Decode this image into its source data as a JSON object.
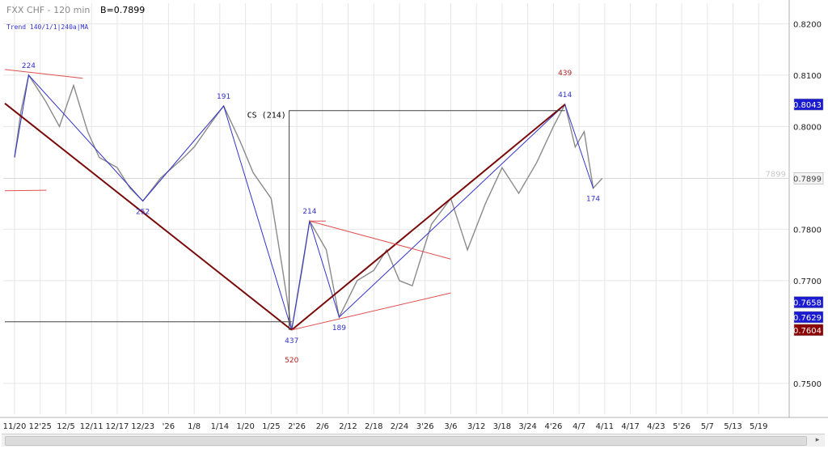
{
  "header": {
    "symbol": "FXX CHF - 120 min",
    "last": "B=0.7899",
    "indicator": "Trend 140/1/1|240a|MA"
  },
  "colors": {
    "background": "#ffffff",
    "grid": "#e6e6e6",
    "price": "#8a8a8a",
    "wave": "#3232c8",
    "channel": "#e05050",
    "trend": "#7a0a0a",
    "box": "#404040",
    "label_blue": "#3232c8",
    "label_red": "#b02020"
  },
  "chart_data": {
    "type": "line",
    "title": "FXX CHF - 120 min",
    "xlabel": "",
    "ylabel": "",
    "ylim": [
      0.744,
      0.824
    ],
    "grid": true,
    "y_ticks": [
      "0.8200",
      "0.8100",
      "0.8000",
      "0.7800",
      "0.7700",
      "0.7500"
    ],
    "x_ticks": [
      "11/20",
      "12'25",
      "12/5",
      "12/11",
      "12/17",
      "12/23",
      "'26",
      "1/8",
      "1/14",
      "1/20",
      "1/25",
      "2'26",
      "2/6",
      "2/12",
      "2/18",
      "2/24",
      "3'26",
      "3/6",
      "3/12",
      "3/18",
      "3/24",
      "4'26",
      "4/7",
      "4/11",
      "4/17",
      "4/23",
      "5'26",
      "5/7",
      "5/13",
      "5/19"
    ],
    "price_series": {
      "name": "FXX CHF",
      "points": [
        [
          "11/20",
          0.794
        ],
        [
          "11/22",
          0.803
        ],
        [
          "11/24",
          0.81
        ],
        [
          "12/1",
          0.805
        ],
        [
          "12/4",
          0.8
        ],
        [
          "12/7",
          0.808
        ],
        [
          "12/10",
          0.799
        ],
        [
          "12/13",
          0.794
        ],
        [
          "12/17",
          0.792
        ],
        [
          "12/20",
          0.788
        ],
        [
          "12/23",
          0.7855
        ],
        [
          "12/28",
          0.79
        ],
        [
          "1/4",
          0.794
        ],
        [
          "1/8",
          0.796
        ],
        [
          "1/12",
          0.801
        ],
        [
          "1/15",
          0.804
        ],
        [
          "1/19",
          0.797
        ],
        [
          "1/22",
          0.791
        ],
        [
          "1/25",
          0.786
        ],
        [
          "1/27",
          0.772
        ],
        [
          "1/29",
          0.7604
        ],
        [
          "2/1",
          0.772
        ],
        [
          "2/4",
          0.7816
        ],
        [
          "2/7",
          0.776
        ],
        [
          "2/10",
          0.7629
        ],
        [
          "2/14",
          0.77
        ],
        [
          "2/18",
          0.772
        ],
        [
          "2/21",
          0.776
        ],
        [
          "2/24",
          0.77
        ],
        [
          "2/27",
          0.769
        ],
        [
          "3/2",
          0.781
        ],
        [
          "3/6",
          0.786
        ],
        [
          "3/10",
          0.776
        ],
        [
          "3/14",
          0.785
        ],
        [
          "3/18",
          0.792
        ],
        [
          "3/22",
          0.787
        ],
        [
          "3/26",
          0.793
        ],
        [
          "3/30",
          0.8
        ],
        [
          "4/2",
          0.8043
        ],
        [
          "4/5",
          0.796
        ],
        [
          "4/8",
          0.799
        ],
        [
          "4/10",
          0.788
        ],
        [
          "4/12",
          0.7899
        ]
      ]
    },
    "price_tags": [
      {
        "value": 0.8043,
        "label": "0.8043",
        "color": "#1a1ad0",
        "text_color": "#ffffff"
      },
      {
        "value": 0.7899,
        "label": "0.7899",
        "color": "#f4f4f4",
        "text_color": "#404040"
      },
      {
        "value": 0.7658,
        "label": "0.7658",
        "color": "#1a1ad0",
        "text_color": "#ffffff"
      },
      {
        "value": 0.7629,
        "label": "0.7629",
        "color": "#1a1ad0",
        "text_color": "#ffffff"
      },
      {
        "value": 0.7604,
        "label": "0.7604",
        "color": "#8b0000",
        "text_color": "#ffffff"
      }
    ],
    "last_price_line": {
      "value": 0.7899,
      "label": "7899"
    },
    "wave_labels": [
      {
        "x": "11/24",
        "y": 0.81,
        "text": "224",
        "pos": "above",
        "color": "blue"
      },
      {
        "x": "12/23",
        "y": 0.7855,
        "text": "252",
        "pos": "below",
        "color": "blue"
      },
      {
        "x": "1/15",
        "y": 0.804,
        "text": "191",
        "pos": "above",
        "color": "blue"
      },
      {
        "x": "1/29",
        "y": 0.7604,
        "text": "437",
        "pos": "below",
        "color": "blue"
      },
      {
        "x": "1/29",
        "y": 0.7604,
        "text": "520",
        "pos": "below2",
        "color": "red"
      },
      {
        "x": "2/4",
        "y": 0.7816,
        "text": "214",
        "pos": "above",
        "color": "blue"
      },
      {
        "x": "2/10",
        "y": 0.7629,
        "text": "189",
        "pos": "below",
        "color": "blue"
      },
      {
        "x": "4/2",
        "y": 0.8043,
        "text": "414",
        "pos": "above",
        "color": "blue"
      },
      {
        "x": "4/2",
        "y": 0.8043,
        "text": "439",
        "pos": "above2",
        "color": "red"
      },
      {
        "x": "4/10",
        "y": 0.788,
        "text": "174",
        "pos": "below",
        "color": "blue"
      }
    ],
    "annotation": {
      "text": "CS (214)",
      "x": "1/27",
      "y": 0.8028
    }
  }
}
